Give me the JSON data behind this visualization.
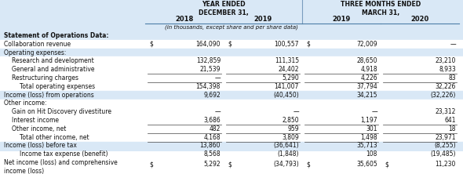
{
  "title_header1": "YEAR ENDED\nDECEMBER 31,",
  "title_header2": "THREE MONTHS ENDED\nMARCH 31,",
  "col_years": [
    "2018",
    "2019",
    "2019",
    "2020"
  ],
  "subheader": "(in thousands, except share and per share data)",
  "bg_blue": "#d9e8f6",
  "bg_white": "#ffffff",
  "rows": [
    {
      "label": "Statement of Operations Data:",
      "indent": 0,
      "bold": true,
      "values": [
        "",
        "",
        "",
        ""
      ],
      "dollar": [
        false,
        false,
        false,
        false
      ],
      "bg": "blue"
    },
    {
      "label": "Collaboration revenue",
      "indent": 0,
      "bold": false,
      "values": [
        "164,090",
        "100,557",
        "72,009",
        "—"
      ],
      "dollar": [
        true,
        true,
        true,
        true
      ],
      "bg": "white"
    },
    {
      "label": "Operating expenses:",
      "indent": 0,
      "bold": false,
      "values": [
        "",
        "",
        "",
        ""
      ],
      "dollar": [
        false,
        false,
        false,
        false
      ],
      "bg": "blue"
    },
    {
      "label": "Research and development",
      "indent": 1,
      "bold": false,
      "values": [
        "132,859",
        "111,315",
        "28,650",
        "23,210"
      ],
      "dollar": [
        false,
        false,
        false,
        false
      ],
      "bg": "white"
    },
    {
      "label": "General and administrative",
      "indent": 1,
      "bold": false,
      "values": [
        "21,539",
        "24,402",
        "4,918",
        "8,933"
      ],
      "dollar": [
        false,
        false,
        false,
        false
      ],
      "bg": "white"
    },
    {
      "label": "Restructuring charges",
      "indent": 1,
      "bold": false,
      "values": [
        "—",
        "5,290",
        "4,226",
        "83"
      ],
      "dollar": [
        false,
        false,
        false,
        false
      ],
      "bg": "white",
      "top_border": true
    },
    {
      "label": "Total operating expenses",
      "indent": 2,
      "bold": false,
      "values": [
        "154,398",
        "141,007",
        "37,794",
        "32,226"
      ],
      "dollar": [
        false,
        false,
        false,
        false
      ],
      "bg": "white",
      "top_border": true
    },
    {
      "label": "Income (loss) from operations",
      "indent": 0,
      "bold": false,
      "values": [
        "9,692",
        "(40,450)",
        "34,215",
        "(32,226)"
      ],
      "dollar": [
        false,
        false,
        false,
        false
      ],
      "bg": "blue"
    },
    {
      "label": "Other income:",
      "indent": 0,
      "bold": false,
      "values": [
        "",
        "",
        "",
        ""
      ],
      "dollar": [
        false,
        false,
        false,
        false
      ],
      "bg": "white"
    },
    {
      "label": "Gain on Hit Discovery divestiture",
      "indent": 1,
      "bold": false,
      "values": [
        "—",
        "—",
        "—",
        "23,312"
      ],
      "dollar": [
        false,
        false,
        false,
        false
      ],
      "bg": "white"
    },
    {
      "label": "Interest income",
      "indent": 1,
      "bold": false,
      "values": [
        "3,686",
        "2,850",
        "1,197",
        "641"
      ],
      "dollar": [
        false,
        false,
        false,
        false
      ],
      "bg": "white"
    },
    {
      "label": "Other income, net",
      "indent": 1,
      "bold": false,
      "values": [
        "482",
        "959",
        "301",
        "18"
      ],
      "dollar": [
        false,
        false,
        false,
        false
      ],
      "bg": "white",
      "top_border": true
    },
    {
      "label": "Total other income, net",
      "indent": 2,
      "bold": false,
      "values": [
        "4,168",
        "3,809",
        "1,498",
        "23,971"
      ],
      "dollar": [
        false,
        false,
        false,
        false
      ],
      "bg": "white",
      "top_border": true
    },
    {
      "label": "Income (loss) before tax",
      "indent": 0,
      "bold": false,
      "values": [
        "13,860",
        "(36,641)",
        "35,713",
        "(8,255)"
      ],
      "dollar": [
        false,
        false,
        false,
        false
      ],
      "bg": "blue",
      "top_border": true
    },
    {
      "label": "Income tax expense (benefit)",
      "indent": 2,
      "bold": false,
      "values": [
        "8,568",
        "(1,848)",
        "108",
        "(19,485)"
      ],
      "dollar": [
        false,
        false,
        false,
        false
      ],
      "bg": "blue"
    },
    {
      "label": "Net income (loss) and comprehensive\nincome (loss)",
      "indent": 0,
      "bold": false,
      "values": [
        "5,292",
        "(34,793)",
        "35,605",
        "11,230"
      ],
      "dollar": [
        true,
        true,
        true,
        true
      ],
      "bg": "blue",
      "top_border": true,
      "bottom_border": true
    }
  ]
}
